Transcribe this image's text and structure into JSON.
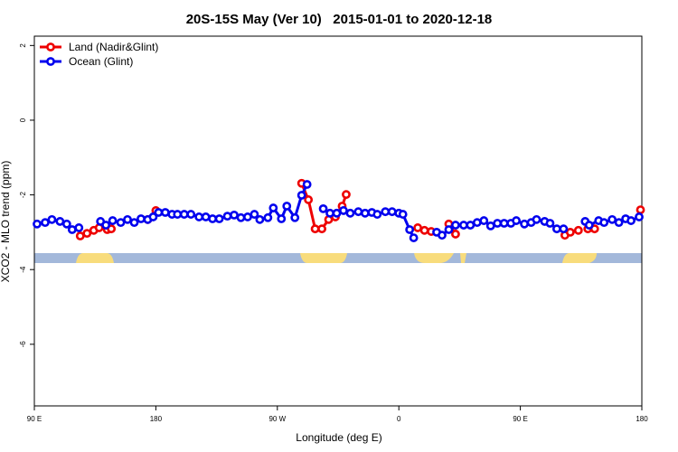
{
  "chart_data": {
    "type": "line",
    "title": "20S-15S May (Ver 10)   2015-01-01 to 2020-12-18",
    "xlabel": "Longitude (deg E)",
    "ylabel": "XCO2 - MLO trend (ppm)",
    "xlim": [
      90,
      540
    ],
    "xticks": [
      {
        "value": 90,
        "label": "90 E"
      },
      180,
      {
        "value": 270,
        "label": "90 W"
      },
      {
        "value": 360,
        "label": "0"
      },
      {
        "value": 450,
        "label": "90 E"
      },
      {
        "value": 540,
        "label": "180"
      }
    ],
    "ylim": [
      -7.65,
      2.25
    ],
    "yticks": [
      2,
      0,
      -2,
      -4,
      -6
    ],
    "legend": "top-left",
    "series": [
      {
        "name": "Land (Nadir&Glint)",
        "color": "#ee0000",
        "x": [
          124,
          129,
          134,
          138,
          144,
          147,
          null,
          174,
          180,
          null,
          288,
          293,
          298,
          303,
          308,
          313,
          318,
          321,
          null,
          374,
          379,
          384,
          null,
          397,
          402,
          null,
          483,
          487,
          493,
          null,
          500,
          505,
          null,
          539
        ],
        "values": [
          -3.1,
          -3.03,
          -2.95,
          -2.88,
          -2.93,
          -2.91,
          null,
          -2.66,
          -2.42,
          null,
          -1.69,
          -2.13,
          -2.91,
          -2.91,
          -2.66,
          -2.59,
          -2.3,
          -1.99,
          null,
          -2.88,
          -2.95,
          -2.98,
          null,
          -2.78,
          -3.05,
          null,
          -3.08,
          -3.0,
          -2.95,
          null,
          -2.91,
          -2.91,
          null,
          -2.4
        ]
      },
      {
        "name": "Ocean (Glint)",
        "color": "#0000ee",
        "x": [
          92,
          98,
          103,
          109,
          114,
          118,
          123,
          null,
          139,
          143,
          148,
          154,
          159,
          164,
          169,
          174,
          178,
          182,
          187,
          192,
          196,
          201,
          206,
          212,
          217,
          222,
          227,
          233,
          238,
          243,
          248,
          253,
          257,
          263,
          267,
          273,
          277,
          283,
          288,
          292,
          null,
          304,
          309,
          314,
          319,
          324,
          330,
          335,
          340,
          344,
          350,
          355,
          360,
          363,
          368,
          371,
          null,
          388,
          392,
          397,
          402,
          408,
          413,
          418,
          423,
          428,
          433,
          438,
          443,
          447,
          453,
          458,
          462,
          468,
          472,
          477,
          482,
          null,
          498,
          501,
          508,
          512,
          518,
          523,
          528,
          532,
          538
        ],
        "values": [
          -2.78,
          -2.74,
          -2.66,
          -2.71,
          -2.78,
          -2.93,
          -2.88,
          null,
          -2.71,
          -2.81,
          -2.69,
          -2.74,
          -2.66,
          -2.74,
          -2.64,
          -2.66,
          -2.59,
          -2.47,
          -2.47,
          -2.52,
          -2.52,
          -2.52,
          -2.52,
          -2.59,
          -2.59,
          -2.64,
          -2.64,
          -2.57,
          -2.54,
          -2.61,
          -2.59,
          -2.52,
          -2.66,
          -2.61,
          -2.35,
          -2.64,
          -2.3,
          -2.61,
          -2.01,
          -1.72,
          null,
          -2.37,
          -2.49,
          -2.49,
          -2.42,
          -2.49,
          -2.45,
          -2.49,
          -2.47,
          -2.52,
          -2.45,
          -2.45,
          -2.49,
          -2.52,
          -2.93,
          -3.15,
          null,
          -3.0,
          -3.08,
          -2.93,
          -2.81,
          -2.81,
          -2.81,
          -2.74,
          -2.69,
          -2.83,
          -2.76,
          -2.76,
          -2.76,
          -2.69,
          -2.78,
          -2.74,
          -2.66,
          -2.71,
          -2.76,
          -2.91,
          -2.91,
          null,
          -2.71,
          -2.81,
          -2.69,
          -2.74,
          -2.66,
          -2.74,
          -2.64,
          -2.69,
          -2.59
        ]
      }
    ]
  }
}
